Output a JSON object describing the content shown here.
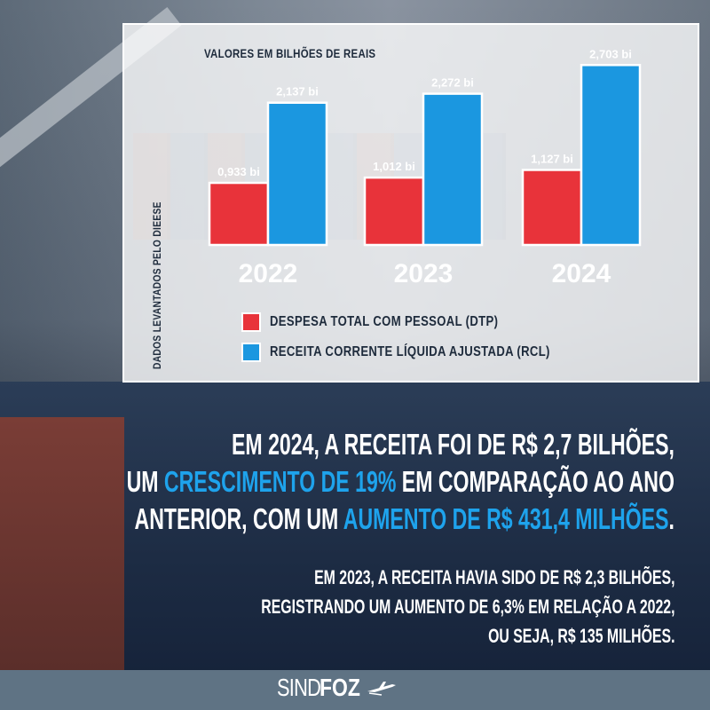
{
  "subtitle": "VALORES EM BILHÕES DE REAIS",
  "source_note": "DADOS LEVANTADOS PELO DIEESE",
  "colors": {
    "dtp": "#e8333a",
    "rcl": "#1b97e0",
    "highlight": "#1ea3ec"
  },
  "chart_data": {
    "type": "bar",
    "categories": [
      "2022",
      "2023",
      "2024"
    ],
    "series": [
      {
        "name": "DESPESA TOTAL COM PESSOAL (DTP)",
        "values": [
          0.933,
          1.012,
          1.127
        ],
        "labels": [
          "0,933 bi",
          "1,012 bi",
          "1,127 bi"
        ]
      },
      {
        "name": "RECEITA CORRENTE LÍQUIDA AJUSTADA (RCL)",
        "values": [
          2.137,
          2.272,
          2.703
        ],
        "labels": [
          "2,137 bi",
          "2,272 bi",
          "2,703 bi"
        ]
      }
    ],
    "ylim": [
      0,
      2.8
    ]
  },
  "headline": {
    "line1": "EM 2024, A RECEITA FOI DE R$ 2,7 BILHÕES,",
    "line2_a": "UM ",
    "line2_hl": "CRESCIMENTO DE 19%",
    "line2_b": " EM COMPARAÇÃO AO ANO",
    "line3_a": "ANTERIOR, COM UM ",
    "line3_hl": "AUMENTO DE R$ 431,4 MILHÕES",
    "line3_b": "."
  },
  "body": {
    "line1": "EM 2023, A RECEITA HAVIA SIDO DE R$ 2,3 BILHÕES,",
    "line2": "REGISTRANDO UM AUMENTO DE 6,3% EM RELAÇÃO A 2022,",
    "line3": "OU SEJA, R$ 135 MILHÕES."
  },
  "logo": {
    "part1": "SINDI",
    "part2": "FOZ",
    "icon": "airplane-icon"
  }
}
